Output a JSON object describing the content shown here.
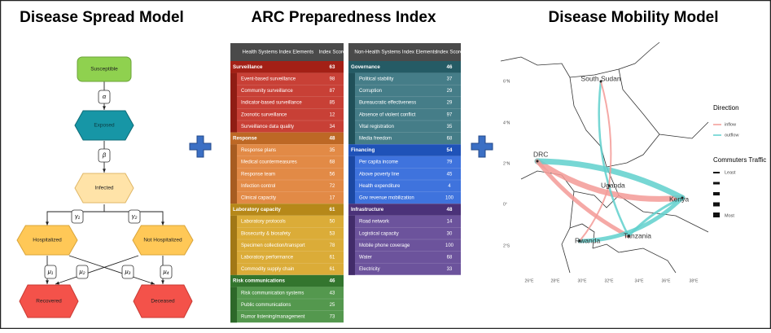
{
  "titles": [
    "Disease Spread Model",
    "ARC Preparedness Index",
    "Disease Mobility Model"
  ],
  "spread_model": {
    "nodes": [
      "Susceptible",
      "Exposed",
      "Infected",
      "Hospitalized",
      "Not Hospitalized",
      "Recovered",
      "Deceased"
    ],
    "rates": [
      "α",
      "β",
      "γ₁",
      "γ₂",
      "μ₁",
      "μ₂",
      "μ₃",
      "μ₄"
    ]
  },
  "index": {
    "tables": [
      {
        "header": [
          "Health Systems Index Elements",
          "Index Score"
        ],
        "groups": [
          {
            "name": "Surveillance",
            "score": "63",
            "color": "#c0261a",
            "items": [
              [
                "Event-based surveillance",
                "98"
              ],
              [
                "Community surveillance",
                "87"
              ],
              [
                "Indicator-based surveillance",
                "85"
              ],
              [
                "Zoonotic surveillance",
                "12"
              ],
              [
                "Surveillance data quality",
                "34"
              ]
            ]
          },
          {
            "name": "Response",
            "score": "48",
            "color": "#de7a2c",
            "items": [
              [
                "Response plans",
                "35"
              ],
              [
                "Medical countermeasures",
                "68"
              ],
              [
                "Response team",
                "56"
              ],
              [
                "Infection control",
                "72"
              ],
              [
                "Clinical capacity",
                "17"
              ]
            ]
          },
          {
            "name": "Laboratory capacity",
            "score": "61",
            "color": "#d6a01d",
            "items": [
              [
                "Laboratory protocols",
                "50"
              ],
              [
                "Biosecurity & biosafety",
                "53"
              ],
              [
                "Specimen collection/transport",
                "78"
              ],
              [
                "Laboratory performance",
                "61"
              ],
              [
                "Commodity supply chain",
                "61"
              ]
            ]
          },
          {
            "name": "Risk communications",
            "score": "46",
            "color": "#3c8a36",
            "items": [
              [
                "Risk communication systems",
                "43"
              ],
              [
                "Public communications",
                "25"
              ],
              [
                "Rumor listening/management",
                "73"
              ]
            ]
          }
        ]
      },
      {
        "header": [
          "Non-Health Systems Index Elements",
          "Index Score"
        ],
        "groups": [
          {
            "name": "Governance",
            "score": "46",
            "color": "#2b6b77",
            "items": [
              [
                "Political stability",
                "37"
              ],
              [
                "Corruption",
                "29"
              ],
              [
                "Bureaucratic effectiveness",
                "29"
              ],
              [
                "Absence of violent conflict",
                "97"
              ],
              [
                "Vital registration",
                "35"
              ],
              [
                "Media freedom",
                "68"
              ]
            ]
          },
          {
            "name": "Financing",
            "score": "54",
            "color": "#2460d8",
            "items": [
              [
                "Per capita income",
                "79"
              ],
              [
                "Above poverty line",
                "45"
              ],
              [
                "Health expenditure",
                "4"
              ],
              [
                "Gov revenue mobilization",
                "100"
              ]
            ]
          },
          {
            "name": "Infrastructure",
            "score": "48",
            "color": "#583b8e",
            "items": [
              [
                "Road network",
                "14"
              ],
              [
                "Logistical capacity",
                "30"
              ],
              [
                "Mobile phone coverage",
                "100"
              ],
              [
                "Water",
                "68"
              ],
              [
                "Electricity",
                "33"
              ]
            ]
          }
        ]
      }
    ]
  },
  "mobility_model": {
    "countries": [
      "South Sudan",
      "DRC",
      "Uganda",
      "Kenya",
      "Tanzania",
      "Rwanda"
    ],
    "lat_labels": [
      "6°N",
      "4°N",
      "2°N",
      "0°",
      "2°S"
    ],
    "lon_labels": [
      "26°E",
      "28°E",
      "30°E",
      "32°E",
      "34°E",
      "36°E",
      "38°E"
    ],
    "legend": {
      "direction_title": "Direction",
      "direction": [
        "inflow",
        "outflow"
      ],
      "traffic_title": "Commuters Traffic",
      "traffic": [
        "Least",
        "Most"
      ]
    }
  }
}
